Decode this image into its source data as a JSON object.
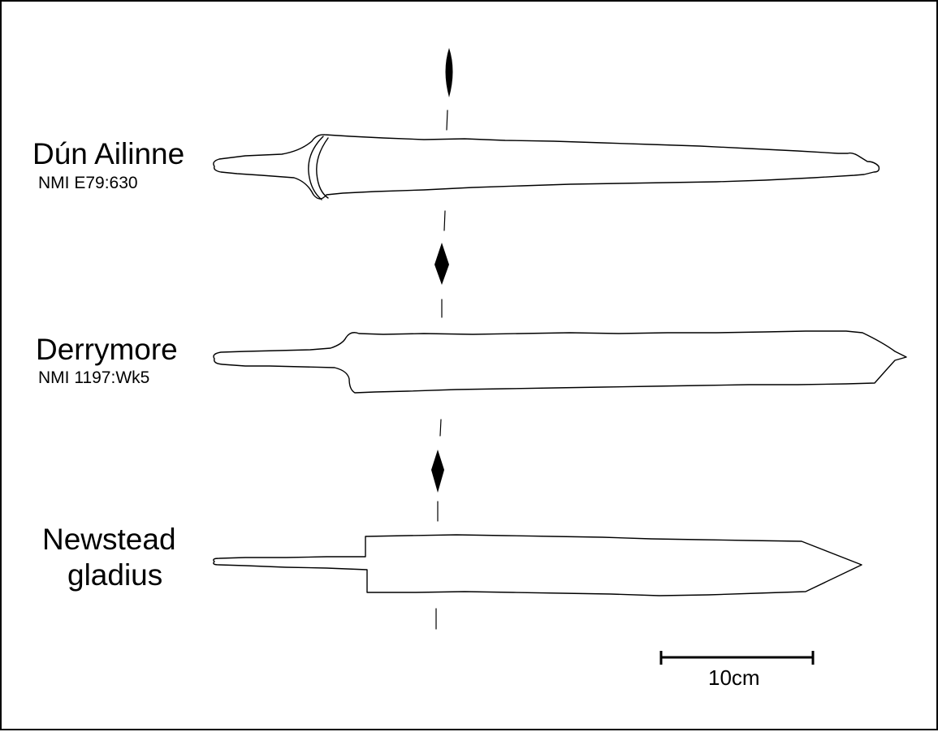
{
  "swords": [
    {
      "name": "Dún Ailinne",
      "catalogue": "NMI E79:630"
    },
    {
      "name": "Derrymore",
      "catalogue": "NMI 1197:Wk5"
    },
    {
      "name_line1": "Newstead",
      "name_line2": "gladius"
    }
  ],
  "scale_bar": {
    "label": "10cm"
  },
  "colors": {
    "ink": "#000000",
    "paper": "#ffffff"
  }
}
